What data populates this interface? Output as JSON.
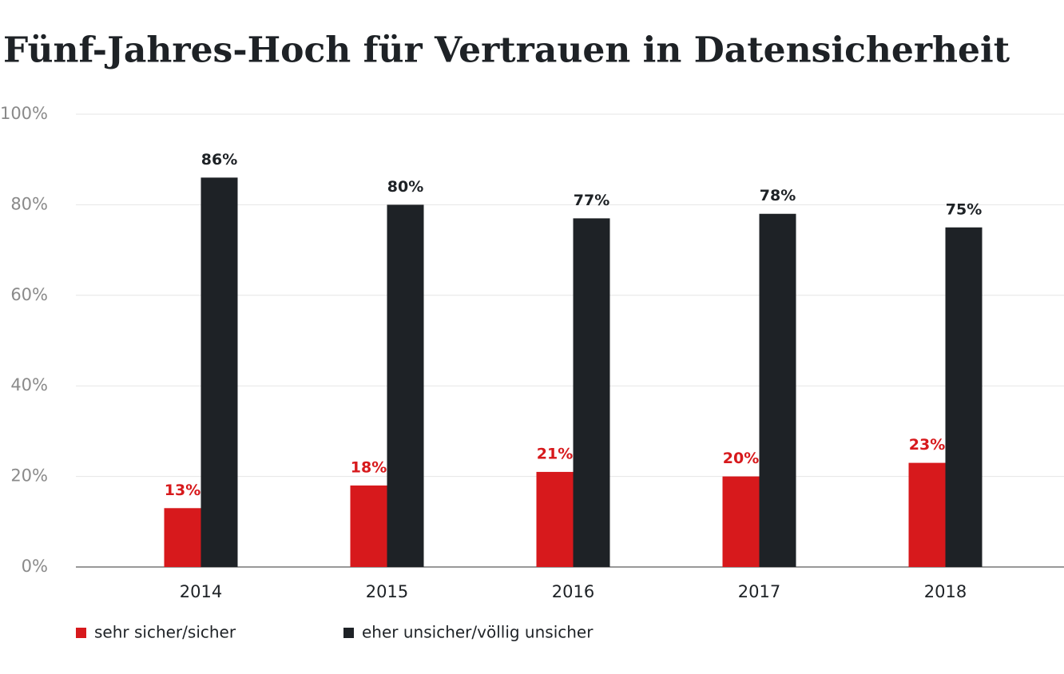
{
  "chart_data": {
    "type": "bar",
    "title": "Fünf-Jahres-Hoch für Vertrauen in Datensicherheit",
    "categories": [
      "2014",
      "2015",
      "2016",
      "2017",
      "2018"
    ],
    "series": [
      {
        "name": "sehr sicher/sicher",
        "color": "#d7191c",
        "values": [
          13,
          18,
          21,
          20,
          23
        ],
        "value_labels": [
          "13%",
          "18%",
          "21%",
          "20%",
          "23%"
        ]
      },
      {
        "name": "eher unsicher/völlig unsicher",
        "color": "#1e2226",
        "values": [
          86,
          80,
          77,
          78,
          75
        ],
        "value_labels": [
          "86%",
          "80%",
          "77%",
          "78%",
          "75%"
        ]
      }
    ],
    "ylim": [
      0,
      100
    ],
    "yticks": [
      {
        "value": 0,
        "label": "0%"
      },
      {
        "value": 20,
        "label": "20%"
      },
      {
        "value": 40,
        "label": "40%"
      },
      {
        "value": 60,
        "label": "60%"
      },
      {
        "value": 80,
        "label": "80%"
      },
      {
        "value": 100,
        "label": "100%"
      }
    ],
    "grid": true
  }
}
